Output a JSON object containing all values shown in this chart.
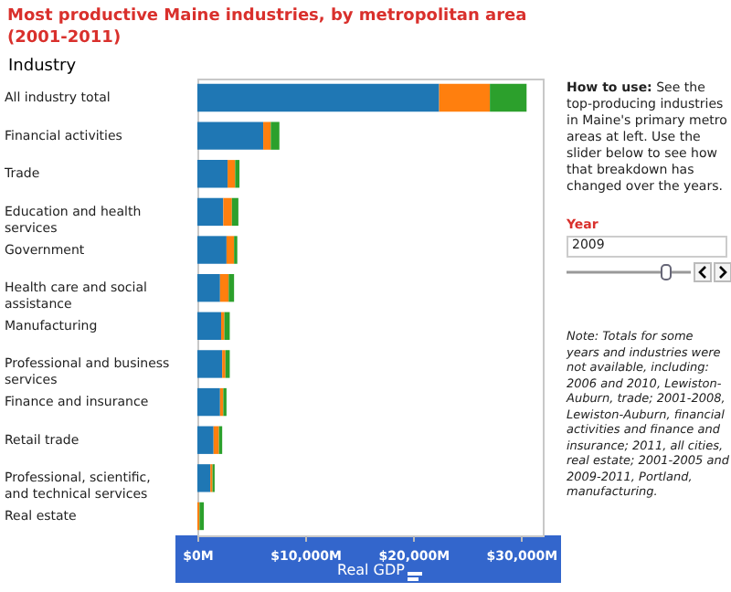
{
  "chart_data": {
    "type": "bar",
    "orientation": "horizontal",
    "stacked": true,
    "title": "Most productive Maine industries, by metropolitan area (2001-2011)",
    "ylabel": "Industry",
    "xlabel": "Real GDP",
    "categories": [
      "All industry total",
      "Financial activities",
      "Trade",
      "Education and health services",
      "Government",
      "Health care and social assistance",
      "Manufacturing",
      "Professional and business services",
      "Finance and insurance",
      "Retail trade",
      "Professional, scientific, and technical services",
      "Real estate"
    ],
    "series": [
      {
        "color": "#1f77b4",
        "values": [
          22400,
          6100,
          2800,
          2400,
          2700,
          2100,
          2200,
          2300,
          2100,
          1500,
          1200,
          null
        ]
      },
      {
        "color": "#ff7f0e",
        "values": [
          4700,
          700,
          700,
          800,
          700,
          800,
          300,
          300,
          300,
          500,
          200,
          200
        ]
      },
      {
        "color": "#2ca02c",
        "values": [
          3400,
          800,
          400,
          600,
          300,
          500,
          500,
          400,
          300,
          300,
          200,
          400
        ]
      }
    ],
    "xlim": [
      0,
      32000
    ],
    "xticks": [
      {
        "value": 0,
        "label": "$0M"
      },
      {
        "value": 10000,
        "label": "$10,000M"
      },
      {
        "value": 20000,
        "label": "$20,000M"
      },
      {
        "value": 30000,
        "label": "$30,000M"
      }
    ],
    "grid": false,
    "legend": false,
    "annotations": [
      "How to use: See the top-producing industries in Maine's primary metro areas at left. Use the slider below to see how that breakdown has changed over the years.",
      "Year",
      "2009",
      "Note: Totals for some years and industries were not available, including: 2006 and 2010, Lewiston-Auburn, trade; 2001-2008, Lewiston-Auburn, financial activities and finance and insurance; 2011, all cities, real estate; 2001-2005 and 2009-2011, Portland, manufacturing."
    ]
  }
}
